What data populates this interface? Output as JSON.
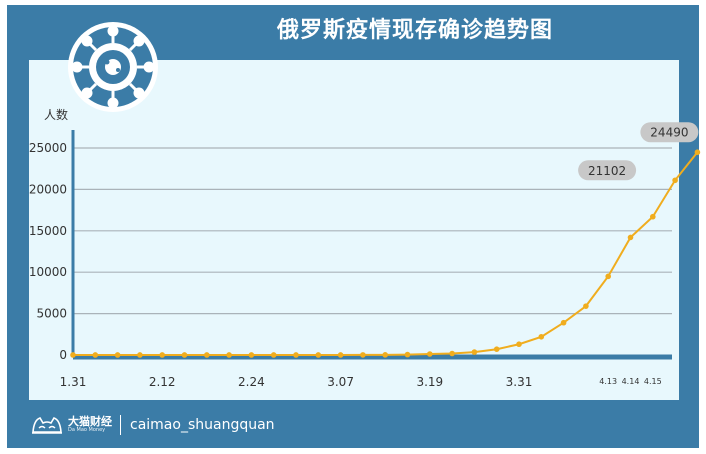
{
  "title": "俄罗斯疫情现存确诊趋势图",
  "icon": "virus-icon",
  "colors": {
    "line": "#f0ad1e",
    "frame": "#3b7ca7",
    "panel": "#e8f8fd",
    "callout_text": "#e0191b",
    "callout_bg": "#c8c8c8"
  },
  "footer": {
    "brand_cn": "大猫财经",
    "brand_en": "Da Mao Money",
    "handle": "caimao_shuangquan",
    "logo_icon": "cat-logo-icon"
  },
  "chart_data": {
    "type": "line",
    "title": "俄罗斯疫情现存确诊趋势图",
    "ylabel": "人数",
    "xlabel": "",
    "ylim": [
      0,
      25000
    ],
    "yticks": [
      0,
      5000,
      10000,
      15000,
      20000,
      25000
    ],
    "grid": true,
    "xtick_labels": [
      {
        "label": "1.31",
        "index": 0
      },
      {
        "label": "2.12",
        "index": 4
      },
      {
        "label": "2.24",
        "index": 8
      },
      {
        "label": "3.07",
        "index": 12
      },
      {
        "label": "3.19",
        "index": 16
      },
      {
        "label": "3.31",
        "index": 20
      },
      {
        "label": "4.13",
        "index": 24
      },
      {
        "label": "4.14",
        "index": 25
      },
      {
        "label": "4.15",
        "index": 26
      }
    ],
    "series": [
      {
        "values": [
          2,
          2,
          2,
          2,
          2,
          2,
          2,
          2,
          2,
          2,
          2,
          2,
          5,
          10,
          20,
          50,
          120,
          180,
          350,
          700,
          1300,
          2200,
          3900,
          5900,
          9500,
          14200,
          16700,
          21102,
          24490
        ]
      }
    ],
    "annotations": [
      {
        "index": 27,
        "value": 21102,
        "text": "21102"
      },
      {
        "index": 28,
        "value": 24490,
        "text": "24490"
      }
    ]
  }
}
